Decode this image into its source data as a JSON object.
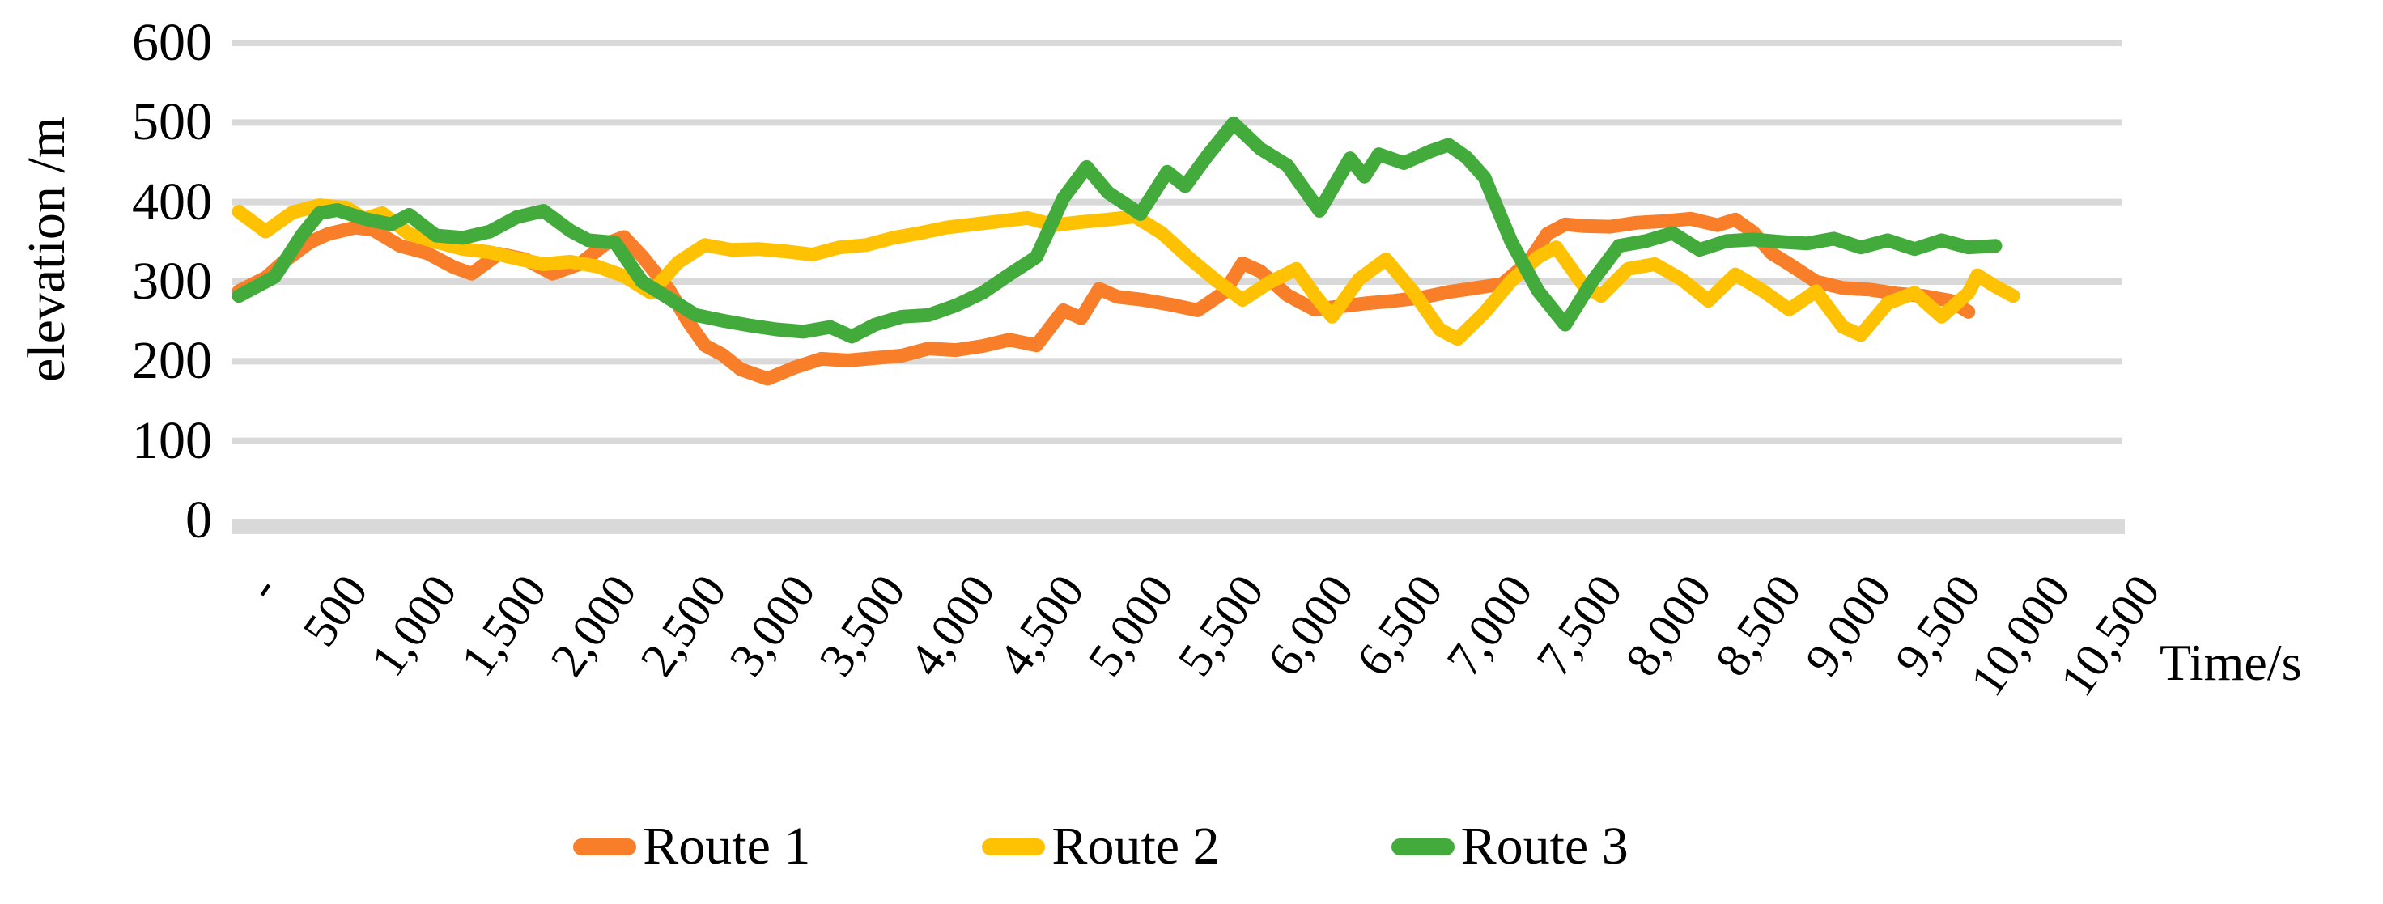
{
  "chart_data": {
    "type": "line",
    "title": "",
    "xlabel": "Time/s",
    "ylabel": "elevation /m",
    "ylim": [
      0,
      600
    ],
    "xlim": [
      0,
      10500
    ],
    "yticks": [
      0,
      100,
      200,
      300,
      400,
      500,
      600
    ],
    "ytick_labels": [
      "0",
      "100",
      "200",
      "300",
      "400",
      "500",
      "600"
    ],
    "xtick_values": [
      0,
      500,
      1000,
      1500,
      2000,
      2500,
      3000,
      3500,
      4000,
      4500,
      5000,
      5500,
      6000,
      6500,
      7000,
      7500,
      8000,
      8500,
      9000,
      9500,
      10000,
      10500
    ],
    "xtick_labels": [
      "-",
      "500",
      "1,000",
      "1,500",
      "2,000",
      "2,500",
      "3,000",
      "3,500",
      "4,000",
      "4,500",
      "5,000",
      "5,500",
      "6,000",
      "6,500",
      "7,000",
      "7,500",
      "8,000",
      "8,500",
      "9,000",
      "9,500",
      "10,000",
      "10,500"
    ],
    "grid": "horizontal",
    "gridline_color": "#D9D9D9",
    "zero_band_color": "#D9D9D9",
    "legend_position": "bottom",
    "series": [
      {
        "name": "Route 1",
        "color": "#F87E2A",
        "points": [
          [
            0,
            288
          ],
          [
            150,
            305
          ],
          [
            250,
            325
          ],
          [
            400,
            350
          ],
          [
            500,
            360
          ],
          [
            650,
            368
          ],
          [
            750,
            365
          ],
          [
            900,
            345
          ],
          [
            1050,
            336
          ],
          [
            1200,
            318
          ],
          [
            1300,
            310
          ],
          [
            1450,
            335
          ],
          [
            1600,
            328
          ],
          [
            1750,
            310
          ],
          [
            1900,
            322
          ],
          [
            2050,
            348
          ],
          [
            2150,
            356
          ],
          [
            2250,
            332
          ],
          [
            2400,
            290
          ],
          [
            2500,
            252
          ],
          [
            2600,
            220
          ],
          [
            2700,
            208
          ],
          [
            2800,
            190
          ],
          [
            2950,
            178
          ],
          [
            3100,
            192
          ],
          [
            3250,
            203
          ],
          [
            3400,
            201
          ],
          [
            3550,
            204
          ],
          [
            3700,
            207
          ],
          [
            3850,
            216
          ],
          [
            4000,
            214
          ],
          [
            4150,
            219
          ],
          [
            4300,
            227
          ],
          [
            4450,
            220
          ],
          [
            4600,
            264
          ],
          [
            4700,
            254
          ],
          [
            4800,
            291
          ],
          [
            4900,
            281
          ],
          [
            5050,
            277
          ],
          [
            5200,
            271
          ],
          [
            5350,
            264
          ],
          [
            5500,
            287
          ],
          [
            5600,
            323
          ],
          [
            5700,
            313
          ],
          [
            5850,
            283
          ],
          [
            6000,
            265
          ],
          [
            6150,
            269
          ],
          [
            6300,
            273
          ],
          [
            6450,
            276
          ],
          [
            6600,
            280
          ],
          [
            6750,
            287
          ],
          [
            6900,
            292
          ],
          [
            7050,
            297
          ],
          [
            7200,
            326
          ],
          [
            7300,
            360
          ],
          [
            7400,
            372
          ],
          [
            7500,
            370
          ],
          [
            7650,
            369
          ],
          [
            7800,
            374
          ],
          [
            7950,
            376
          ],
          [
            8100,
            379
          ],
          [
            8250,
            371
          ],
          [
            8350,
            378
          ],
          [
            8450,
            362
          ],
          [
            8550,
            336
          ],
          [
            8650,
            322
          ],
          [
            8800,
            300
          ],
          [
            8950,
            292
          ],
          [
            9100,
            290
          ],
          [
            9250,
            285
          ],
          [
            9400,
            282
          ],
          [
            9550,
            276
          ],
          [
            9650,
            262
          ]
        ]
      },
      {
        "name": "Route 2",
        "color": "#FFC203",
        "points": [
          [
            0,
            388
          ],
          [
            150,
            363
          ],
          [
            300,
            387
          ],
          [
            450,
            396
          ],
          [
            600,
            393
          ],
          [
            700,
            379
          ],
          [
            800,
            386
          ],
          [
            950,
            360
          ],
          [
            1100,
            350
          ],
          [
            1250,
            341
          ],
          [
            1400,
            337
          ],
          [
            1550,
            329
          ],
          [
            1700,
            322
          ],
          [
            1850,
            325
          ],
          [
            2000,
            319
          ],
          [
            2150,
            307
          ],
          [
            2300,
            286
          ],
          [
            2450,
            324
          ],
          [
            2600,
            346
          ],
          [
            2750,
            340
          ],
          [
            2900,
            341
          ],
          [
            3050,
            338
          ],
          [
            3200,
            334
          ],
          [
            3350,
            343
          ],
          [
            3500,
            346
          ],
          [
            3650,
            355
          ],
          [
            3800,
            361
          ],
          [
            3950,
            368
          ],
          [
            4100,
            372
          ],
          [
            4250,
            376
          ],
          [
            4400,
            380
          ],
          [
            4550,
            371
          ],
          [
            4700,
            375
          ],
          [
            4850,
            378
          ],
          [
            5000,
            382
          ],
          [
            5150,
            361
          ],
          [
            5300,
            330
          ],
          [
            5450,
            302
          ],
          [
            5600,
            277
          ],
          [
            5750,
            299
          ],
          [
            5900,
            316
          ],
          [
            6000,
            284
          ],
          [
            6100,
            256
          ],
          [
            6250,
            303
          ],
          [
            6400,
            328
          ],
          [
            6550,
            288
          ],
          [
            6700,
            240
          ],
          [
            6800,
            228
          ],
          [
            6950,
            261
          ],
          [
            7100,
            301
          ],
          [
            7250,
            331
          ],
          [
            7350,
            343
          ],
          [
            7500,
            296
          ],
          [
            7600,
            282
          ],
          [
            7750,
            316
          ],
          [
            7900,
            322
          ],
          [
            8050,
            303
          ],
          [
            8200,
            276
          ],
          [
            8350,
            309
          ],
          [
            8500,
            289
          ],
          [
            8650,
            265
          ],
          [
            8800,
            288
          ],
          [
            8950,
            243
          ],
          [
            9050,
            233
          ],
          [
            9200,
            273
          ],
          [
            9350,
            286
          ],
          [
            9500,
            256
          ],
          [
            9650,
            286
          ],
          [
            9700,
            308
          ],
          [
            9800,
            294
          ],
          [
            9900,
            282
          ]
        ]
      },
      {
        "name": "Route 3",
        "color": "#43AB3C",
        "points": [
          [
            0,
            282
          ],
          [
            200,
            306
          ],
          [
            350,
            358
          ],
          [
            450,
            386
          ],
          [
            550,
            390
          ],
          [
            700,
            379
          ],
          [
            850,
            372
          ],
          [
            950,
            384
          ],
          [
            1100,
            358
          ],
          [
            1250,
            355
          ],
          [
            1400,
            363
          ],
          [
            1550,
            381
          ],
          [
            1700,
            389
          ],
          [
            1850,
            364
          ],
          [
            1950,
            352
          ],
          [
            2100,
            349
          ],
          [
            2250,
            300
          ],
          [
            2400,
            279
          ],
          [
            2550,
            258
          ],
          [
            2700,
            251
          ],
          [
            2850,
            245
          ],
          [
            3000,
            240
          ],
          [
            3150,
            237
          ],
          [
            3300,
            243
          ],
          [
            3420,
            231
          ],
          [
            3550,
            246
          ],
          [
            3700,
            256
          ],
          [
            3850,
            258
          ],
          [
            4000,
            270
          ],
          [
            4150,
            286
          ],
          [
            4300,
            309
          ],
          [
            4450,
            331
          ],
          [
            4600,
            405
          ],
          [
            4730,
            444
          ],
          [
            4850,
            412
          ],
          [
            5030,
            385
          ],
          [
            5180,
            438
          ],
          [
            5280,
            420
          ],
          [
            5400,
            457
          ],
          [
            5550,
            499
          ],
          [
            5700,
            467
          ],
          [
            5850,
            446
          ],
          [
            6030,
            389
          ],
          [
            6200,
            455
          ],
          [
            6280,
            432
          ],
          [
            6360,
            460
          ],
          [
            6500,
            449
          ],
          [
            6650,
            464
          ],
          [
            6750,
            472
          ],
          [
            6850,
            456
          ],
          [
            6950,
            431
          ],
          [
            7100,
            350
          ],
          [
            7250,
            288
          ],
          [
            7400,
            246
          ],
          [
            7550,
            300
          ],
          [
            7700,
            345
          ],
          [
            7850,
            351
          ],
          [
            8000,
            361
          ],
          [
            8150,
            340
          ],
          [
            8300,
            351
          ],
          [
            8450,
            353
          ],
          [
            8600,
            350
          ],
          [
            8750,
            348
          ],
          [
            8900,
            354
          ],
          [
            9050,
            343
          ],
          [
            9200,
            352
          ],
          [
            9350,
            341
          ],
          [
            9500,
            352
          ],
          [
            9650,
            343
          ],
          [
            9800,
            345
          ]
        ]
      }
    ]
  }
}
